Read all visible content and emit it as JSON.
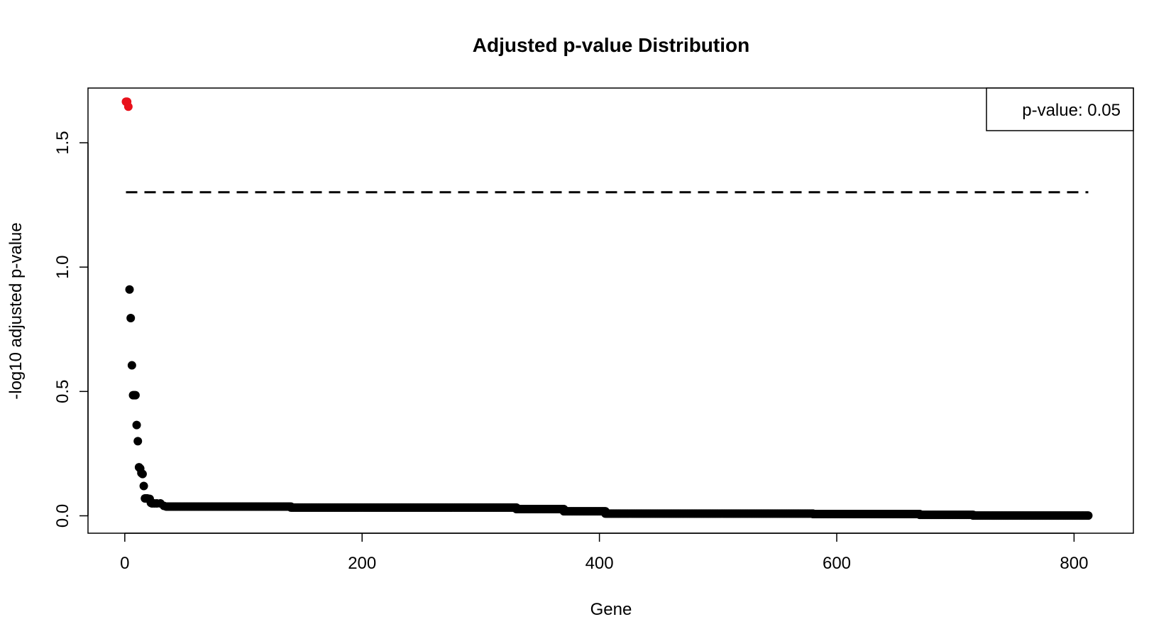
{
  "chart_data": {
    "type": "scatter",
    "title": "Adjusted p-value Distribution",
    "xlabel": "Gene",
    "ylabel": "-log10 adjusted p-value",
    "xlim": [
      -31,
      850
    ],
    "ylim": [
      -0.07,
      1.72
    ],
    "xticks": [
      0,
      200,
      400,
      600,
      800
    ],
    "xtick_labels": [
      "0",
      "200",
      "400",
      "600",
      "800"
    ],
    "yticks": [
      0.0,
      0.5,
      1.0,
      1.5
    ],
    "ytick_labels": [
      "0.0",
      "0.5",
      "1.0",
      "1.5"
    ],
    "legend": {
      "text": "p-value: 0.05",
      "position": "top-right"
    },
    "threshold": {
      "y": 1.301,
      "x_range": [
        1,
        812
      ],
      "style": "dashed"
    },
    "colors": {
      "significant": "#e8111b",
      "nonsignificant": "#000000",
      "line": "#000000"
    },
    "significant_points": [
      [
        1,
        1.665
      ],
      [
        2,
        1.665
      ],
      [
        3,
        1.645
      ]
    ],
    "points": [
      [
        4,
        0.91
      ],
      [
        5,
        0.795
      ],
      [
        6,
        0.605
      ],
      [
        7,
        0.485
      ],
      [
        8,
        0.485
      ],
      [
        9,
        0.485
      ],
      [
        10,
        0.365
      ],
      [
        11,
        0.3
      ],
      [
        12,
        0.195
      ],
      [
        13,
        0.19
      ],
      [
        14,
        0.172
      ],
      [
        15,
        0.168
      ],
      [
        16,
        0.12
      ],
      [
        17,
        0.07
      ],
      [
        18,
        0.07
      ],
      [
        19,
        0.07
      ],
      [
        20,
        0.068
      ],
      [
        21,
        0.068
      ],
      [
        22,
        0.052
      ],
      [
        23,
        0.05
      ],
      [
        25,
        0.05
      ],
      [
        27,
        0.05
      ],
      [
        30,
        0.05
      ],
      [
        33,
        0.04
      ]
    ],
    "segments": [
      {
        "x_range": [
          35,
          140
        ],
        "y": 0.037
      },
      {
        "x_range": [
          140,
          330
        ],
        "y": 0.033
      },
      {
        "x_range": [
          330,
          370
        ],
        "y": 0.027
      },
      {
        "x_range": [
          370,
          405
        ],
        "y": 0.018
      },
      {
        "x_range": [
          405,
          580
        ],
        "y": 0.009
      },
      {
        "x_range": [
          580,
          670
        ],
        "y": 0.007
      },
      {
        "x_range": [
          670,
          715
        ],
        "y": 0.004
      },
      {
        "x_range": [
          715,
          812
        ],
        "y": 0.001
      }
    ]
  }
}
